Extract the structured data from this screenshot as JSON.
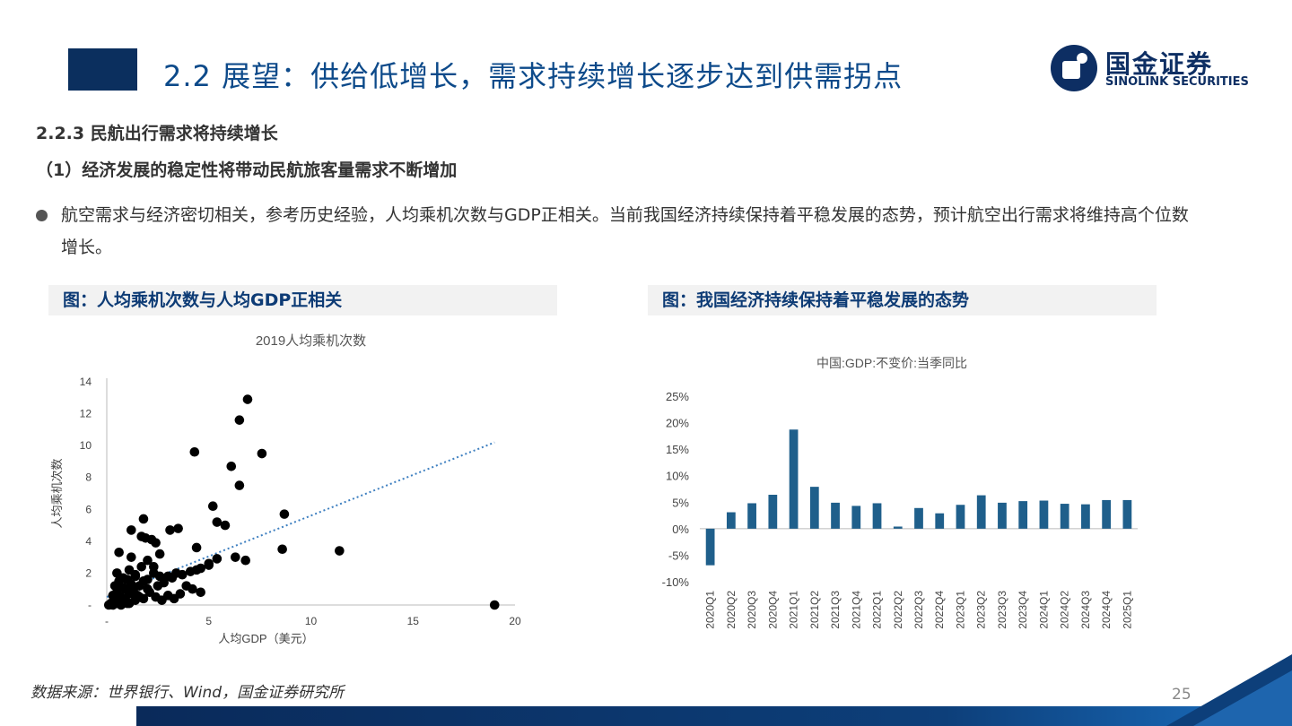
{
  "header": {
    "title": "2.2 展望：供给低增长，需求持续增长逐步达到供需拐点",
    "logo_cn": "国金证券",
    "logo_en": "SINOLINK SECURITIES"
  },
  "section": {
    "heading": "2.2.3 民航出行需求将持续增长",
    "subheading": "（1）经济发展的稳定性将带动民航旅客量需求不断增加",
    "bullet": "航空需求与经济密切相关，参考历史经验，人均乘机次数与GDP正相关。当前我国经济持续保持着平稳发展的态势，预计航空出行需求将维持高个位数增长。"
  },
  "figures": {
    "left_title": "图：人均乘机次数与人均GDP正相关",
    "right_title": "图：我国经济持续保持着平稳发展的态势"
  },
  "chart_data": [
    {
      "type": "scatter",
      "title": "2019人均乘机次数",
      "xlabel": "人均GDP（美元）",
      "ylabel": "人均乘机次数",
      "xlim": [
        0,
        20
      ],
      "ylim": [
        0,
        14
      ],
      "x_ticks": [
        "-",
        "5",
        "10",
        "15",
        "20"
      ],
      "y_ticks": [
        "-",
        "2",
        "4",
        "6",
        "8",
        "10",
        "12",
        "14"
      ],
      "trendline": {
        "x": [
          0,
          19
        ],
        "y": [
          0.5,
          10.2
        ]
      },
      "x": [
        0.1,
        0.2,
        0.3,
        0.4,
        0.5,
        0.6,
        0.7,
        0.8,
        0.9,
        1.0,
        0.3,
        0.5,
        0.7,
        0.9,
        1.1,
        1.3,
        0.4,
        0.6,
        0.8,
        1.0,
        1.2,
        1.4,
        1.6,
        1.8,
        2.0,
        0.5,
        0.8,
        1.1,
        1.4,
        1.7,
        2.0,
        2.3,
        2.6,
        1.5,
        1.8,
        2.1,
        2.4,
        2.7,
        3.0,
        3.3,
        3.6,
        0.6,
        1.2,
        1.7,
        2.2,
        2.6,
        3.1,
        3.5,
        3.9,
        4.2,
        4.6,
        5.0,
        5.4,
        4.4,
        2.3,
        2.0,
        1.8,
        1.2,
        0.6,
        1.9,
        2.4,
        3.0,
        3.4,
        4.3,
        4.4,
        5.0,
        5.2,
        5.4,
        5.8,
        6.3,
        6.5,
        6.8,
        6.1,
        6.5,
        6.9,
        7.6,
        8.6,
        8.7,
        11.4,
        19.0,
        0.9,
        1.1,
        1.4,
        1.6,
        2.5,
        2.8,
        3.2,
        3.7,
        4.1,
        4.6
      ],
      "y": [
        0.0,
        0.1,
        0.0,
        0.2,
        0.1,
        0.3,
        0.0,
        0.2,
        0.4,
        0.1,
        0.6,
        0.8,
        0.5,
        1.0,
        0.7,
        0.9,
        1.2,
        1.5,
        1.1,
        1.6,
        1.3,
        1.8,
        1.2,
        1.5,
        1.0,
        2.0,
        1.7,
        2.2,
        1.9,
        2.4,
        1.6,
        2.0,
        1.8,
        0.6,
        0.4,
        0.8,
        0.5,
        0.3,
        0.6,
        0.4,
        0.7,
        3.3,
        4.7,
        4.3,
        4.1,
        3.2,
        4.7,
        4.8,
        1.2,
        1.0,
        0.8,
        2.6,
        2.9,
        2.2,
        2.4,
        2.8,
        5.4,
        3.0,
        0.5,
        4.2,
        3.9,
        1.8,
        2.0,
        9.6,
        3.6,
        2.5,
        6.2,
        5.2,
        5.0,
        3.0,
        11.6,
        2.8,
        8.7,
        7.5,
        12.9,
        9.5,
        3.5,
        5.7,
        3.4,
        0.0,
        0.2,
        0.1,
        0.3,
        0.5,
        1.2,
        1.4,
        1.7,
        1.9,
        2.1,
        2.3
      ]
    },
    {
      "type": "bar",
      "title": "中国:GDP:不变价:当季同比",
      "ylim": [
        -10,
        25
      ],
      "y_ticks": [
        "25%",
        "20%",
        "15%",
        "10%",
        "5%",
        "0%",
        "-5%",
        "-10%"
      ],
      "categories": [
        "2020Q1",
        "2020Q2",
        "2020Q3",
        "2020Q4",
        "2021Q1",
        "2021Q2",
        "2021Q3",
        "2021Q4",
        "2022Q1",
        "2022Q2",
        "2022Q3",
        "2022Q4",
        "2023Q1",
        "2023Q2",
        "2023Q3",
        "2023Q4",
        "2024Q1",
        "2024Q2",
        "2024Q3",
        "2024Q4",
        "2025Q1"
      ],
      "values": [
        -6.9,
        3.1,
        4.8,
        6.4,
        18.7,
        7.9,
        4.9,
        4.3,
        4.8,
        0.4,
        3.9,
        2.9,
        4.5,
        6.3,
        4.9,
        5.2,
        5.3,
        4.7,
        4.6,
        5.4,
        5.4
      ],
      "color": "#1f5f8b"
    }
  ],
  "footer": {
    "source": "数据来源：世界银行、Wind，国金证券研究所",
    "page_number": "25"
  }
}
